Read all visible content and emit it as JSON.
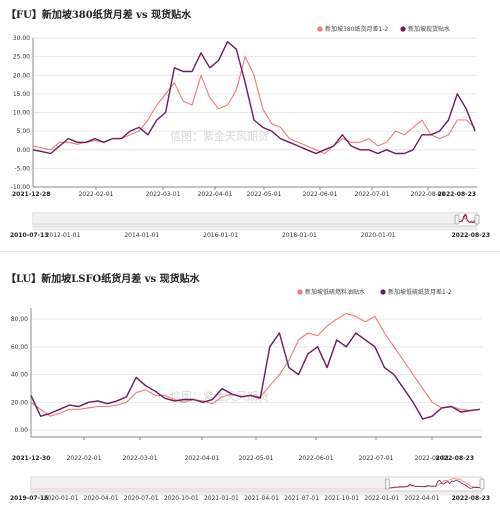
{
  "watermark": "信图：紫金天风期货",
  "colors": {
    "salmon": "#f07b78",
    "purple": "#6c1b5c",
    "grid": "#e6e6e6",
    "axis": "#888888"
  },
  "chart_data": [
    {
      "type": "line",
      "title": "【FU】新加坡380纸货月差 vs 现货贴水",
      "ylim": [
        -10,
        30
      ],
      "yticks": [
        "30.00",
        "25.00",
        "20.00",
        "15.00",
        "10.00",
        "5.00",
        "0.00",
        "-5.00",
        "-10.00"
      ],
      "xticks": [
        "2021-12-28",
        "2022-02-01",
        "2022-03-01",
        "2022-04-01",
        "2022-05-01",
        "2022-06-01",
        "2022-07-01",
        "2022-08-01",
        "2022-08-23"
      ],
      "navigator_ticks": [
        "2010-07-13",
        "2012-01-01",
        "2014-01-01",
        "2016-01-01",
        "2018-01-01",
        "2020-01-01",
        "2022-08-23"
      ],
      "legend_position": "top-right",
      "series": [
        {
          "name": "新加坡380纸货月差1-2",
          "color": "#f07b78",
          "values": [
            1,
            0.5,
            0,
            2,
            2,
            1.5,
            2,
            2.5,
            2,
            3,
            3,
            4,
            5,
            8,
            12,
            15,
            18,
            13,
            12,
            20,
            14,
            11,
            12,
            16,
            25,
            20,
            11,
            7,
            6,
            3,
            2,
            1,
            0,
            -1,
            1,
            3,
            2,
            2,
            3,
            1,
            2,
            5,
            4,
            6,
            8,
            4,
            3,
            4,
            8,
            8,
            6
          ]
        },
        {
          "name": "新加坡现货贴水",
          "color": "#6c1b5c",
          "values": [
            0,
            -0.5,
            -1,
            1,
            3,
            2,
            2,
            3,
            2,
            3,
            3,
            5,
            6,
            4,
            8,
            10,
            22,
            21,
            21,
            26,
            22,
            24,
            29,
            27,
            18,
            8,
            6,
            5,
            3,
            2,
            1,
            0,
            -1,
            0,
            1,
            4,
            1,
            0,
            0,
            -1,
            0,
            -1,
            -1,
            0,
            4,
            4,
            5,
            8,
            15,
            11,
            5
          ]
        }
      ]
    },
    {
      "type": "line",
      "title": "【LU】新加坡LSFO纸货月差 vs 现货贴水",
      "ylim": [
        -5,
        88
      ],
      "yticks": [
        "80.00",
        "60.00",
        "40.00",
        "20.00",
        "0.00"
      ],
      "xticks": [
        "2021-12-30",
        "2022-02-01",
        "2022-03-01",
        "2022-04-01",
        "2022-05-01",
        "2022-06-01",
        "2022-07-01",
        "2022-08-01",
        "2022-08-23"
      ],
      "navigator_ticks": [
        "2019-07-15",
        "2020-01-01",
        "2020-04-01",
        "2020-07-01",
        "2020-10-01",
        "2021-01-01",
        "2021-04-01",
        "2021-07-01",
        "2021-10-01",
        "2022-01-01",
        "2022-04-01",
        "2022-08-23"
      ],
      "legend_position": "top-right",
      "series": [
        {
          "name": "新加坡低硫燃料油贴水",
          "color": "#f07b78",
          "values": [
            20,
            15,
            10,
            12,
            15,
            15,
            16,
            17,
            17,
            18,
            20,
            27,
            29,
            25,
            25,
            22,
            20,
            22,
            21,
            19,
            24,
            26,
            24,
            25,
            24,
            32,
            40,
            50,
            65,
            70,
            68,
            75,
            80,
            84,
            82,
            78,
            82,
            70,
            60,
            50,
            40,
            30,
            20,
            16,
            17,
            15,
            14,
            15
          ]
        },
        {
          "name": "新加坡低硫纸货月差1-2",
          "color": "#6c1b5c",
          "values": [
            25,
            10,
            12,
            15,
            18,
            17,
            20,
            21,
            19,
            21,
            24,
            38,
            32,
            28,
            23,
            21,
            22,
            22,
            20,
            22,
            30,
            26,
            24,
            25,
            23,
            60,
            70,
            45,
            40,
            55,
            60,
            45,
            65,
            60,
            70,
            65,
            60,
            45,
            40,
            30,
            20,
            8,
            10,
            16,
            17,
            13,
            14,
            15
          ]
        }
      ]
    }
  ]
}
